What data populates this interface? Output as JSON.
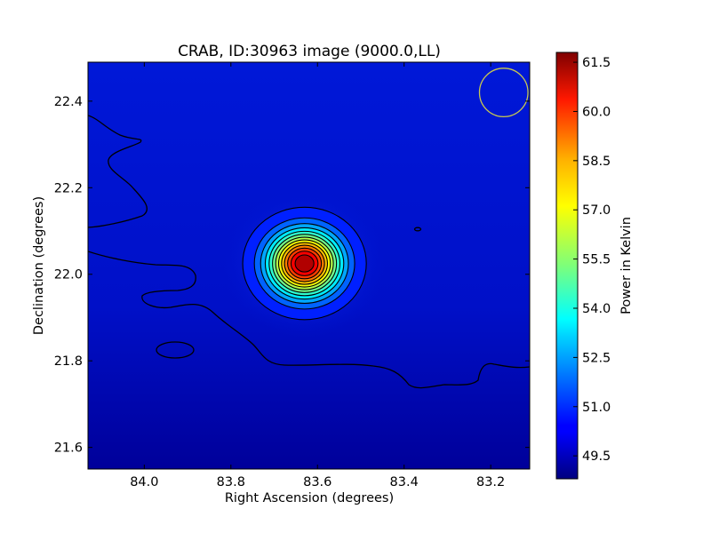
{
  "chart_data": {
    "type": "heatmap",
    "title": "CRAB, ID:30963 image (9000.0,LL)",
    "xlabel": "Right Ascension (degrees)",
    "ylabel": "Declination (degrees)",
    "xlim": [
      84.13,
      83.11
    ],
    "ylim": [
      21.55,
      22.49
    ],
    "x_ticks": [
      84.0,
      83.8,
      83.6,
      83.4,
      83.2
    ],
    "x_tick_labels": [
      "84.0",
      "83.8",
      "83.6",
      "83.4",
      "83.2"
    ],
    "y_ticks": [
      21.6,
      21.8,
      22.0,
      22.2,
      22.4
    ],
    "y_tick_labels": [
      "21.6",
      "21.8",
      "22.0",
      "22.2",
      "22.4"
    ],
    "colormap": "jet",
    "colorbar": {
      "label": "Power in Kelvin",
      "range": [
        48.8,
        61.8
      ],
      "ticks": [
        49.5,
        51.0,
        52.5,
        54.0,
        55.5,
        57.0,
        58.5,
        60.0,
        61.5
      ],
      "tick_labels": [
        "49.5",
        "51.0",
        "52.5",
        "54.0",
        "55.5",
        "57.0",
        "58.5",
        "60.0",
        "61.5"
      ]
    },
    "source": {
      "ra": 83.63,
      "dec": 22.025,
      "peak": 61.6,
      "background": 50.0,
      "sigma_ra": 0.055,
      "sigma_dec": 0.05,
      "contour_count": 13
    },
    "beam": {
      "ra": 83.17,
      "dec": 22.42,
      "radius_deg": 0.056,
      "color": "#c8c850"
    },
    "grid": false
  }
}
